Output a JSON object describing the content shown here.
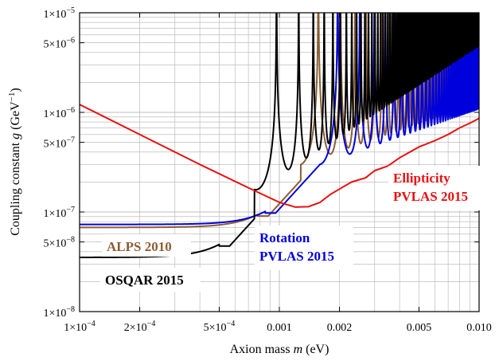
{
  "chart_data": {
    "type": "line",
    "xlabel_prefix": "Axion mass ",
    "xlabel_var": "m",
    "xlabel_suffix": " (eV)",
    "ylabel_prefix": "Coupling constant ",
    "ylabel_var": "g",
    "ylabel_suffix": " (GeV",
    "ylabel_sup": "−1",
    "ylabel_close": ")",
    "x_scale": "log",
    "y_scale": "log",
    "xlim": [
      0.0001,
      0.01
    ],
    "ylim": [
      1e-08,
      1e-05
    ],
    "grid": true,
    "x_ticks": [
      {
        "value": 0.0001,
        "mant": "1×10",
        "exp": "−4"
      },
      {
        "value": 0.0002,
        "mant": "2×10",
        "exp": "−4"
      },
      {
        "value": 0.0005,
        "mant": "5×10",
        "exp": "−4"
      },
      {
        "value": 0.001,
        "text": "0.001"
      },
      {
        "value": 0.002,
        "text": "0.002"
      },
      {
        "value": 0.005,
        "text": "0.005"
      },
      {
        "value": 0.01,
        "text": "0.010"
      }
    ],
    "y_ticks": [
      {
        "value": 1e-08,
        "mant": "1×10",
        "exp": "−8"
      },
      {
        "value": 5e-08,
        "mant": "5×10",
        "exp": "−8"
      },
      {
        "value": 1e-07,
        "mant": "1×10",
        "exp": "−7"
      },
      {
        "value": 5e-07,
        "mant": "5×10",
        "exp": "−7"
      },
      {
        "value": 1e-06,
        "mant": "1×10",
        "exp": "−6"
      },
      {
        "value": 5e-06,
        "mant": "5×10",
        "exp": "−6"
      },
      {
        "value": 1e-05,
        "mant": "1×10",
        "exp": "−5"
      }
    ],
    "series": [
      {
        "name": "ALPS 2010",
        "color": "#8b5e34",
        "flat_g": 7e-08,
        "break_m": 0.00078,
        "first_min_m": 0.00128,
        "first_min_g": 3e-07,
        "min_slope": 0.7,
        "peak_g": 1e-05,
        "peak_period_m": 0.0014,
        "osc_scale": 0.5
      },
      {
        "name": "Rotation PVLAS 2015",
        "color": "#0000dd",
        "flat_g": 7.5e-08,
        "break_m": 0.00085,
        "first_min_m": 0.0016,
        "first_min_g": 3e-07,
        "min_slope": 0.7,
        "peak_g": 1e-05,
        "peak_period_m": 0.0016,
        "osc_scale": 0.5
      },
      {
        "name": "OSQAR 2015",
        "color": "#000000",
        "flat_g": 3.5e-08,
        "break_m": 0.0005,
        "first_min_m": 0.00075,
        "first_min_g": 1.6e-07,
        "min_slope": 1.3,
        "peak_g": 1e-05,
        "peak_period_m": 0.00063,
        "osc_scale": 0.45
      },
      {
        "name": "Ellipticity PVLAS 2015",
        "color": "#e81010",
        "points": [
          [
            0.0001,
            1.2e-06
          ],
          [
            0.0002,
            6e-07
          ],
          [
            0.0004,
            3e-07
          ],
          [
            0.0007,
            1.75e-07
          ],
          [
            0.001,
            1.25e-07
          ],
          [
            0.0012,
            1.12e-07
          ],
          [
            0.0014,
            1.13e-07
          ],
          [
            0.0016,
            1.25e-07
          ],
          [
            0.0018,
            1.5e-07
          ],
          [
            0.002,
            1.7e-07
          ],
          [
            0.0023,
            2e-07
          ],
          [
            0.0027,
            2.2e-07
          ],
          [
            0.003,
            2.6e-07
          ],
          [
            0.0035,
            2.9e-07
          ],
          [
            0.004,
            3.5e-07
          ],
          [
            0.005,
            4.5e-07
          ],
          [
            0.006,
            5.2e-07
          ],
          [
            0.007,
            6e-07
          ],
          [
            0.008,
            7e-07
          ],
          [
            0.009,
            7.8e-07
          ],
          [
            0.01,
            8.7e-07
          ]
        ]
      }
    ],
    "annotations": [
      {
        "lines": [
          "Ellipticity",
          "PVLAS 2015"
        ],
        "color": "#e81010",
        "anchor": "upper-right-center"
      },
      {
        "lines": [
          "Rotation",
          "PVLAS 2015"
        ],
        "color": "#0000dd",
        "anchor": "lower-center"
      },
      {
        "lines": [
          "ALPS 2010"
        ],
        "color": "#8b5e34",
        "anchor": "lower-left"
      },
      {
        "lines": [
          "OSQAR 2015"
        ],
        "color": "#000000",
        "anchor": "bottom-left"
      }
    ]
  }
}
